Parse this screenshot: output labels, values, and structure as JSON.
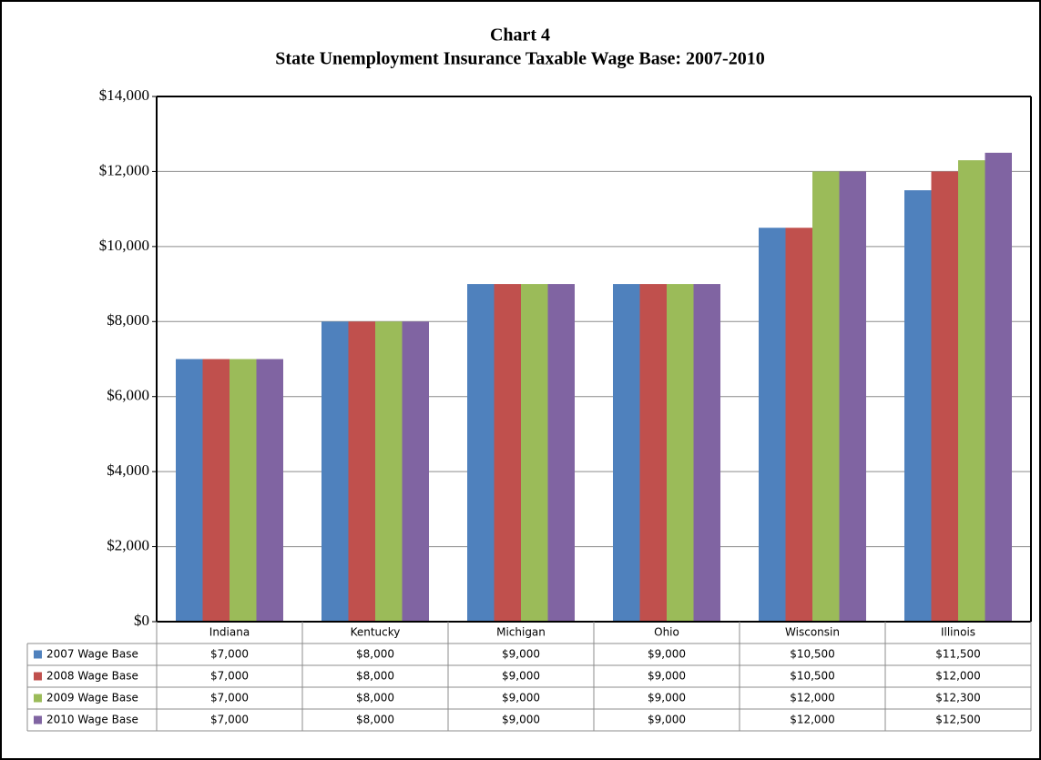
{
  "chart_data": {
    "type": "bar",
    "title": "Chart 4",
    "subtitle": "State Unemployment Insurance Taxable Wage Base:  2007-2010",
    "categories": [
      "Indiana",
      "Kentucky",
      "Michigan",
      "Ohio",
      "Wisconsin",
      "Illinois"
    ],
    "series": [
      {
        "name": "2007 Wage Base",
        "color": "#4f81bd",
        "values": [
          7000,
          8000,
          9000,
          9000,
          10500,
          11500
        ],
        "value_labels": [
          "$7,000",
          "$8,000",
          "$9,000",
          "$9,000",
          "$10,500",
          "$11,500"
        ]
      },
      {
        "name": "2008 Wage Base",
        "color": "#c0504d",
        "values": [
          7000,
          8000,
          9000,
          9000,
          10500,
          12000
        ],
        "value_labels": [
          "$7,000",
          "$8,000",
          "$9,000",
          "$9,000",
          "$10,500",
          "$12,000"
        ]
      },
      {
        "name": "2009 Wage Base",
        "color": "#9bbb59",
        "values": [
          7000,
          8000,
          9000,
          9000,
          12000,
          12300
        ],
        "value_labels": [
          "$7,000",
          "$8,000",
          "$9,000",
          "$9,000",
          "$12,000",
          "$12,300"
        ]
      },
      {
        "name": "2010 Wage Base",
        "color": "#8064a2",
        "values": [
          7000,
          8000,
          9000,
          9000,
          12000,
          12500
        ],
        "value_labels": [
          "$7,000",
          "$8,000",
          "$9,000",
          "$9,000",
          "$12,000",
          "$12,500"
        ]
      }
    ],
    "ylim": [
      0,
      14000
    ],
    "yticks": [
      {
        "value": 0,
        "label": "$0"
      },
      {
        "value": 2000,
        "label": "$2,000"
      },
      {
        "value": 4000,
        "label": "$4,000"
      },
      {
        "value": 6000,
        "label": "$6,000"
      },
      {
        "value": 8000,
        "label": "$8,000"
      },
      {
        "value": 10000,
        "label": "$10,000"
      },
      {
        "value": 12000,
        "label": "$12,000"
      },
      {
        "value": 14000,
        "label": "$14,000"
      }
    ],
    "grid": true
  }
}
